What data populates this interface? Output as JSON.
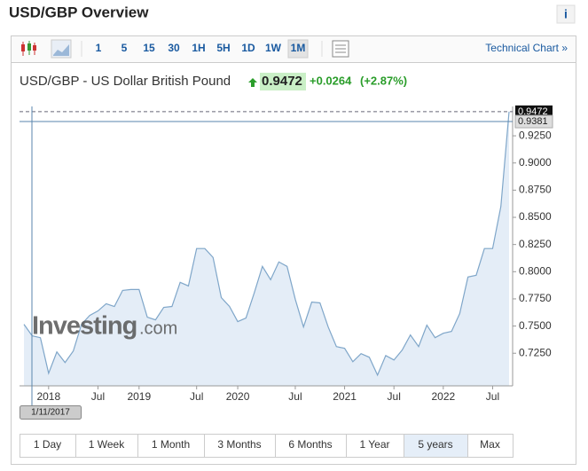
{
  "header": {
    "title": "USD/GBP Overview",
    "info": "i"
  },
  "toolbar": {
    "intervals": [
      "1",
      "5",
      "15",
      "30",
      "1H",
      "5H",
      "1D",
      "1W",
      "1M"
    ],
    "selected": "1M",
    "link": "Technical Chart »"
  },
  "quote": {
    "name": "USD/GBP - US Dollar British Pound",
    "price": "0.9472",
    "change": "+0.0264",
    "change_pct": "(+2.87%)"
  },
  "watermark": {
    "brand": "Investing",
    "suffix": ".com"
  },
  "crosshair": {
    "value": 0.9381,
    "date": "1/11/2017"
  },
  "chart_data": {
    "type": "area",
    "color": "#7fa6c9",
    "categories": [
      null,
      null,
      null,
      "2018",
      null,
      null,
      null,
      null,
      null,
      "Jul",
      null,
      null,
      null,
      null,
      "2019",
      null,
      null,
      null,
      null,
      null,
      null,
      "Jul",
      null,
      null,
      null,
      null,
      "2020",
      null,
      null,
      null,
      null,
      null,
      null,
      "Jul",
      null,
      null,
      null,
      null,
      null,
      "2021",
      null,
      null,
      null,
      null,
      null,
      "Jul",
      null,
      null,
      null,
      null,
      null,
      "2022",
      null,
      null,
      null,
      null,
      null,
      "Jul",
      null,
      null
    ],
    "values": [
      0.7516,
      0.741,
      0.7393,
      0.7066,
      0.7262,
      0.7164,
      0.727,
      0.7516,
      0.7598,
      0.7639,
      0.7705,
      0.768,
      0.7828,
      0.7836,
      0.7836,
      0.7582,
      0.7557,
      0.7672,
      0.768,
      0.7902,
      0.7869,
      0.8213,
      0.8213,
      0.8131,
      0.7762,
      0.768,
      0.7541,
      0.7574,
      0.7803,
      0.8049,
      0.7926,
      0.809,
      0.8049,
      0.7746,
      0.7492,
      0.7721,
      0.7713,
      0.7492,
      0.7311,
      0.7295,
      0.7172,
      0.7246,
      0.7213,
      0.7049,
      0.7229,
      0.7188,
      0.7279,
      0.7418,
      0.7311,
      0.7508,
      0.7393,
      0.7434,
      0.7451,
      0.7615,
      0.7951,
      0.7967,
      0.8213,
      0.8213,
      0.8599,
      0.9472
    ],
    "ylim": [
      0.695,
      0.952
    ],
    "yticks": [
      {
        "value": 0.725,
        "label": "0.7250"
      },
      {
        "value": 0.75,
        "label": "0.7500"
      },
      {
        "value": 0.775,
        "label": "0.7750"
      },
      {
        "value": 0.8,
        "label": "0.8000"
      },
      {
        "value": 0.825,
        "label": "0.8250"
      },
      {
        "value": 0.85,
        "label": "0.8500"
      },
      {
        "value": 0.875,
        "label": "0.8750"
      },
      {
        "value": 0.9,
        "label": "0.9000"
      },
      {
        "value": 0.925,
        "label": "0.9250"
      }
    ]
  },
  "ranges": {
    "options": [
      "1 Day",
      "1 Week",
      "1 Month",
      "3 Months",
      "6 Months",
      "1 Year",
      "5 years",
      "Max"
    ],
    "selected": "5 years"
  }
}
